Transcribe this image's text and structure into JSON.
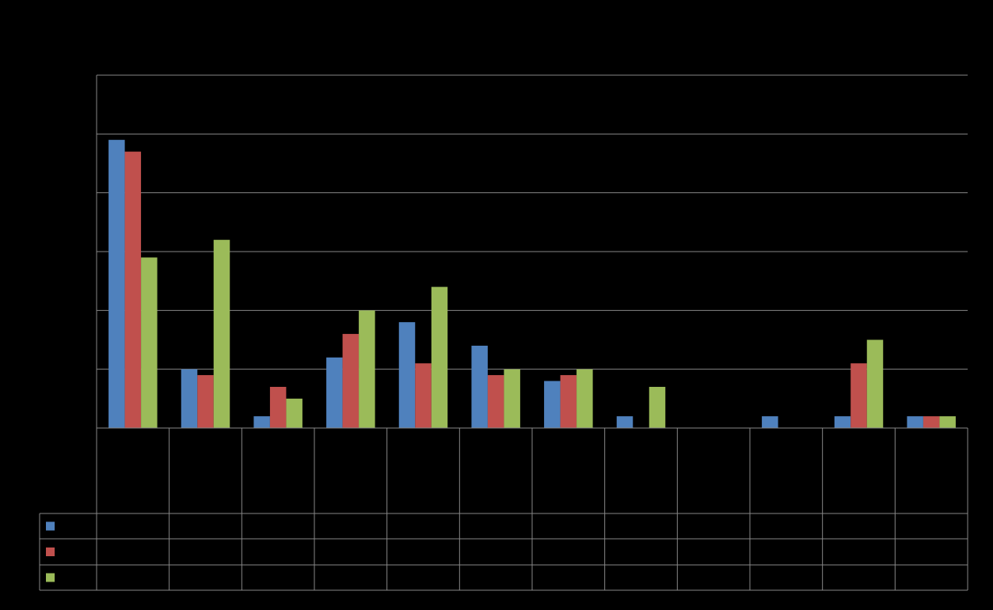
{
  "chart_data": {
    "type": "bar",
    "title": "",
    "xlabel": "",
    "ylabel": "",
    "ylim": [
      0,
      6
    ],
    "grid": true,
    "legend": "data-table-rows-bottom",
    "categories": [
      "",
      "",
      "",
      "",
      "",
      "",
      "",
      "",
      "",
      "",
      "",
      ""
    ],
    "series": [
      {
        "color": "#4f81bd",
        "values": [
          4.9,
          1.0,
          0.2,
          1.2,
          1.8,
          1.4,
          0.8,
          0.2,
          0.0,
          0.2,
          0.2,
          0.2
        ]
      },
      {
        "color": "#c0504d",
        "values": [
          4.7,
          0.9,
          0.7,
          1.6,
          1.1,
          0.9,
          0.9,
          0.0,
          0.0,
          0.0,
          1.1,
          0.2
        ]
      },
      {
        "color": "#9bbb59",
        "values": [
          2.9,
          3.2,
          0.5,
          2.0,
          2.4,
          1.0,
          1.0,
          0.7,
          0.0,
          0.0,
          1.5,
          0.2
        ]
      }
    ]
  },
  "colors": {
    "background": "#000000",
    "gridline": "#868686",
    "axis": "#868686"
  }
}
